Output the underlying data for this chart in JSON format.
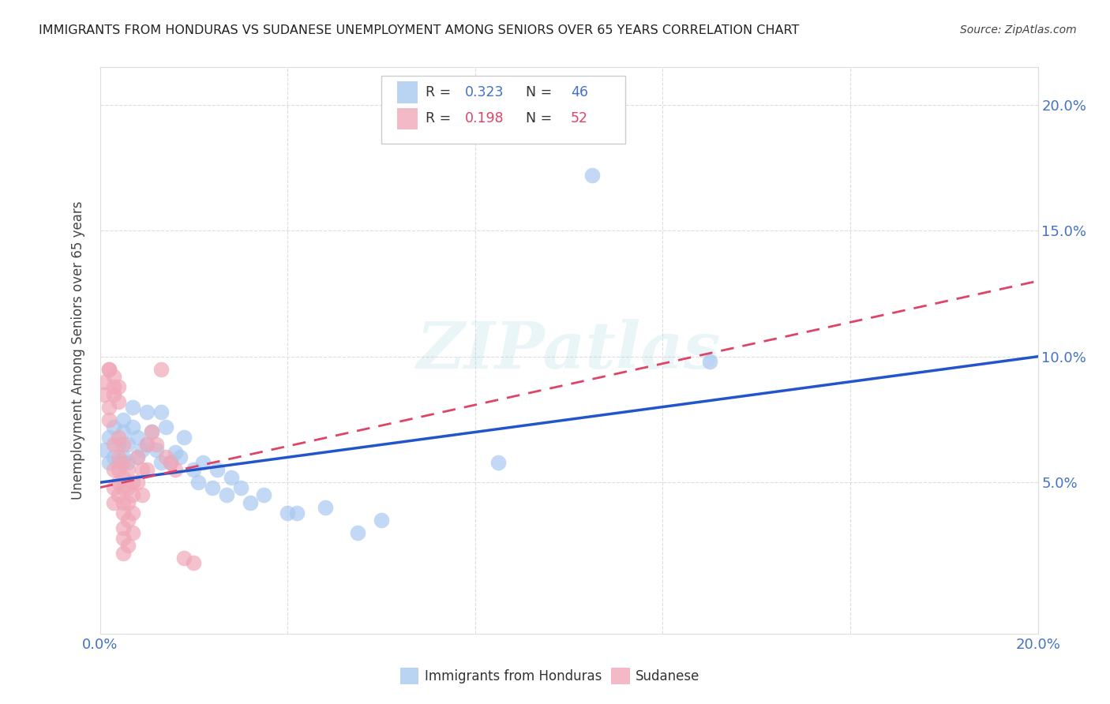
{
  "title": "IMMIGRANTS FROM HONDURAS VS SUDANESE UNEMPLOYMENT AMONG SENIORS OVER 65 YEARS CORRELATION CHART",
  "source": "Source: ZipAtlas.com",
  "ylabel": "Unemployment Among Seniors over 65 years",
  "xlim": [
    0.0,
    0.2
  ],
  "ylim": [
    -0.01,
    0.215
  ],
  "y_tick_vals": [
    0.05,
    0.1,
    0.15,
    0.2
  ],
  "y_tick_labels": [
    "5.0%",
    "10.0%",
    "15.0%",
    "20.0%"
  ],
  "x_tick_vals": [
    0.0,
    0.04,
    0.08,
    0.12,
    0.16,
    0.2
  ],
  "watermark": "ZIPatlas",
  "blue_color": "#a8c8f0",
  "pink_color": "#f0a8b8",
  "blue_line_color": "#2255cc",
  "pink_line_color": "#dd4466",
  "r_blue": "0.323",
  "n_blue": "46",
  "r_pink": "0.198",
  "n_pink": "52",
  "honduras_points": [
    [
      0.001,
      0.063
    ],
    [
      0.002,
      0.058
    ],
    [
      0.002,
      0.068
    ],
    [
      0.003,
      0.06
    ],
    [
      0.003,
      0.072
    ],
    [
      0.004,
      0.065
    ],
    [
      0.004,
      0.058
    ],
    [
      0.005,
      0.07
    ],
    [
      0.005,
      0.075
    ],
    [
      0.005,
      0.06
    ],
    [
      0.006,
      0.065
    ],
    [
      0.006,
      0.058
    ],
    [
      0.007,
      0.08
    ],
    [
      0.007,
      0.072
    ],
    [
      0.008,
      0.06
    ],
    [
      0.008,
      0.068
    ],
    [
      0.009,
      0.063
    ],
    [
      0.01,
      0.078
    ],
    [
      0.01,
      0.065
    ],
    [
      0.011,
      0.07
    ],
    [
      0.012,
      0.063
    ],
    [
      0.013,
      0.058
    ],
    [
      0.013,
      0.078
    ],
    [
      0.014,
      0.072
    ],
    [
      0.015,
      0.058
    ],
    [
      0.016,
      0.062
    ],
    [
      0.017,
      0.06
    ],
    [
      0.018,
      0.068
    ],
    [
      0.02,
      0.055
    ],
    [
      0.021,
      0.05
    ],
    [
      0.022,
      0.058
    ],
    [
      0.024,
      0.048
    ],
    [
      0.025,
      0.055
    ],
    [
      0.027,
      0.045
    ],
    [
      0.028,
      0.052
    ],
    [
      0.03,
      0.048
    ],
    [
      0.032,
      0.042
    ],
    [
      0.035,
      0.045
    ],
    [
      0.04,
      0.038
    ],
    [
      0.042,
      0.038
    ],
    [
      0.048,
      0.04
    ],
    [
      0.055,
      0.03
    ],
    [
      0.06,
      0.035
    ],
    [
      0.085,
      0.058
    ],
    [
      0.105,
      0.172
    ],
    [
      0.13,
      0.098
    ]
  ],
  "sudanese_points": [
    [
      0.001,
      0.09
    ],
    [
      0.001,
      0.085
    ],
    [
      0.002,
      0.095
    ],
    [
      0.002,
      0.095
    ],
    [
      0.002,
      0.08
    ],
    [
      0.002,
      0.075
    ],
    [
      0.003,
      0.092
    ],
    [
      0.003,
      0.088
    ],
    [
      0.003,
      0.085
    ],
    [
      0.003,
      0.065
    ],
    [
      0.003,
      0.055
    ],
    [
      0.003,
      0.048
    ],
    [
      0.003,
      0.042
    ],
    [
      0.004,
      0.088
    ],
    [
      0.004,
      0.082
    ],
    [
      0.004,
      0.068
    ],
    [
      0.004,
      0.06
    ],
    [
      0.004,
      0.055
    ],
    [
      0.004,
      0.05
    ],
    [
      0.004,
      0.045
    ],
    [
      0.005,
      0.065
    ],
    [
      0.005,
      0.058
    ],
    [
      0.005,
      0.052
    ],
    [
      0.005,
      0.048
    ],
    [
      0.005,
      0.042
    ],
    [
      0.005,
      0.038
    ],
    [
      0.005,
      0.032
    ],
    [
      0.005,
      0.028
    ],
    [
      0.005,
      0.022
    ],
    [
      0.006,
      0.055
    ],
    [
      0.006,
      0.048
    ],
    [
      0.006,
      0.042
    ],
    [
      0.006,
      0.035
    ],
    [
      0.006,
      0.025
    ],
    [
      0.007,
      0.05
    ],
    [
      0.007,
      0.045
    ],
    [
      0.007,
      0.038
    ],
    [
      0.007,
      0.03
    ],
    [
      0.008,
      0.06
    ],
    [
      0.008,
      0.05
    ],
    [
      0.009,
      0.055
    ],
    [
      0.009,
      0.045
    ],
    [
      0.01,
      0.065
    ],
    [
      0.01,
      0.055
    ],
    [
      0.011,
      0.07
    ],
    [
      0.012,
      0.065
    ],
    [
      0.013,
      0.095
    ],
    [
      0.014,
      0.06
    ],
    [
      0.015,
      0.058
    ],
    [
      0.016,
      0.055
    ],
    [
      0.018,
      0.02
    ],
    [
      0.02,
      0.018
    ]
  ]
}
